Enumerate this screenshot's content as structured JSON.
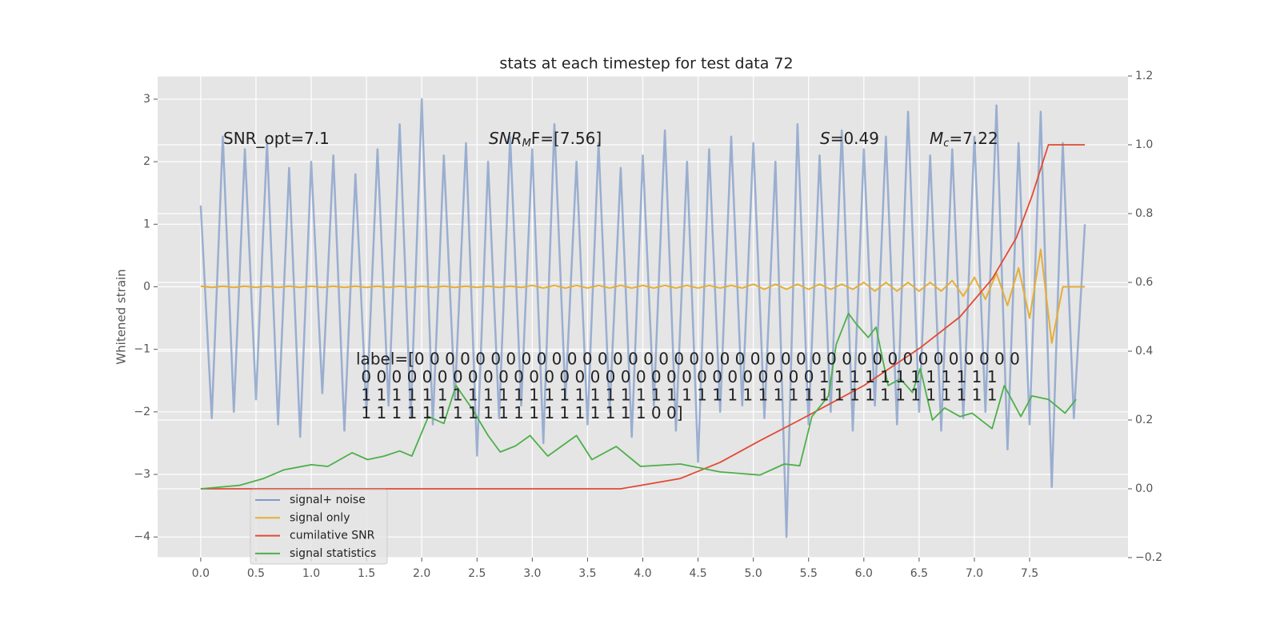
{
  "chart_data": {
    "type": "line",
    "title": "stats at each timestep for test data 72",
    "ylabel": "Whitened strain",
    "xlim": [
      -0.39,
      8.39
    ],
    "ylim": [
      -4.33,
      3.37
    ],
    "y2lim": [
      -0.2,
      1.2
    ],
    "xticks": [
      {
        "value": 0,
        "label": "0.0"
      },
      0.5,
      {
        "value": 1,
        "label": "1.0"
      },
      1.5,
      {
        "value": 2,
        "label": "2.0"
      },
      2.5,
      {
        "value": 3,
        "label": "3.0"
      },
      3.5,
      {
        "value": 4,
        "label": "4.0"
      },
      4.5,
      {
        "value": 5,
        "label": "5.0"
      },
      5.5,
      {
        "value": 6,
        "label": "6.0"
      },
      6.5,
      {
        "value": 7,
        "label": "7.0"
      },
      7.5
    ],
    "yticks": [
      3,
      2,
      1,
      0,
      {
        "value": -1,
        "label": "−1"
      },
      {
        "value": -2,
        "label": "−2"
      },
      {
        "value": -3,
        "label": "−3"
      },
      {
        "value": -4,
        "label": "−4"
      }
    ],
    "y2ticks": [
      1.2,
      {
        "value": 1,
        "label": "1.0"
      },
      0.8,
      0.6,
      0.4,
      0.2,
      {
        "value": 0,
        "label": "0.0"
      },
      {
        "value": -0.2,
        "label": "−0.2"
      }
    ],
    "grid": true,
    "legend": "lower left",
    "x": [
      0,
      0.1,
      0.2,
      0.3,
      0.4,
      0.5,
      0.6,
      0.7,
      0.8,
      0.9,
      1,
      1.1,
      1.2,
      1.3,
      1.4,
      1.5,
      1.6,
      1.7,
      1.8,
      1.9,
      2,
      2.1,
      2.2,
      2.3,
      2.4,
      2.5,
      2.6,
      2.7,
      2.8,
      2.9,
      3,
      3.1,
      3.2,
      3.3,
      3.4,
      3.5,
      3.6,
      3.7,
      3.8,
      3.9,
      4,
      4.1,
      4.2,
      4.3,
      4.4,
      4.5,
      4.6,
      4.7,
      4.8,
      4.9,
      5,
      5.1,
      5.2,
      5.3,
      5.4,
      5.5,
      5.6,
      5.7,
      5.8,
      5.9,
      6,
      6.1,
      6.2,
      6.3,
      6.4,
      6.5,
      6.6,
      6.7,
      6.8,
      6.9,
      7,
      7.1,
      7.2,
      7.3,
      7.4,
      7.5,
      7.6,
      7.7,
      7.8,
      7.9,
      8
    ],
    "series": [
      {
        "name": "signal+ noise",
        "color": "#7f9bc8",
        "values": [
          1.3,
          -2.1,
          2.4,
          -2.0,
          2.2,
          -1.8,
          2.3,
          -2.2,
          1.9,
          -2.4,
          2.0,
          -1.7,
          2.1,
          -2.3,
          1.8,
          -2.0,
          2.2,
          -1.9,
          2.6,
          -2.1,
          3.0,
          -2.2,
          2.1,
          -1.8,
          2.3,
          -2.7,
          2.0,
          -2.1,
          2.4,
          -1.9,
          2.2,
          -2.5,
          2.6,
          -1.8,
          2.0,
          -2.2,
          2.3,
          -2.0,
          1.9,
          -2.4,
          2.1,
          -1.9,
          2.5,
          -2.3,
          2.0,
          -2.8,
          2.2,
          -2.0,
          2.4,
          -1.9,
          2.3,
          -2.1,
          2.0,
          -4.0,
          2.6,
          -2.2,
          2.1,
          -2.0,
          2.5,
          -2.3,
          2.2,
          -1.9,
          2.4,
          -2.2,
          2.8,
          -2.0,
          2.1,
          -2.3,
          2.2,
          -2.1,
          2.4,
          -2.0,
          2.9,
          -2.6,
          2.3,
          -2.2,
          2.8,
          -3.2,
          2.3,
          -2.1,
          1.0
        ]
      },
      {
        "name": "signal only",
        "color": "#e5ae38",
        "values": [
          0.01,
          -0.01,
          0.01,
          -0.01,
          0.01,
          -0.01,
          0.01,
          -0.01,
          0.01,
          -0.01,
          0.01,
          -0.01,
          0.01,
          -0.01,
          0.01,
          -0.01,
          0.01,
          -0.01,
          0.01,
          -0.01,
          0.01,
          -0.01,
          0.01,
          -0.01,
          0.01,
          -0.01,
          0.01,
          -0.01,
          0.01,
          -0.01,
          0.02,
          -0.02,
          0.02,
          -0.02,
          0.02,
          -0.02,
          0.02,
          -0.02,
          0.02,
          -0.02,
          0.02,
          -0.02,
          0.02,
          -0.02,
          0.02,
          -0.02,
          0.02,
          -0.02,
          0.02,
          -0.02,
          0.04,
          -0.04,
          0.04,
          -0.04,
          0.04,
          -0.04,
          0.04,
          -0.04,
          0.04,
          -0.04,
          0.07,
          -0.07,
          0.07,
          -0.07,
          0.07,
          -0.07,
          0.07,
          -0.07,
          0.1,
          -0.15,
          0.15,
          -0.2,
          0.22,
          -0.3,
          0.3,
          -0.5,
          0.6,
          -0.9,
          0,
          0,
          0
        ]
      },
      {
        "name": "cumilative SNR",
        "color": "#e24a33",
        "axis": "y2",
        "x": [
          0,
          3.8,
          3.98,
          4.34,
          4.7,
          5.06,
          5.42,
          6,
          6.51,
          6.87,
          7.16,
          7.38,
          7.52,
          7.67,
          8
        ],
        "values": [
          0,
          0,
          0.01,
          0.03,
          0.077,
          0.14,
          0.2,
          0.3,
          0.41,
          0.5,
          0.61,
          0.73,
          0.85,
          1,
          1
        ]
      },
      {
        "name": "signal statistics",
        "color": "#4daf4a",
        "axis": "y2",
        "x": [
          0,
          0.35,
          0.57,
          0.75,
          1,
          1.15,
          1.37,
          1.51,
          1.66,
          1.8,
          1.91,
          2.06,
          2.2,
          2.31,
          2.45,
          2.6,
          2.71,
          2.85,
          2.98,
          3.14,
          3.4,
          3.54,
          3.76,
          3.98,
          4.34,
          4.7,
          5.06,
          5.28,
          5.42,
          5.53,
          5.68,
          5.75,
          5.86,
          5.93,
          6.04,
          6.11,
          6.22,
          6.33,
          6.44,
          6.51,
          6.62,
          6.73,
          6.87,
          6.98,
          7.16,
          7.27,
          7.42,
          7.52,
          7.67,
          7.82,
          7.92
        ],
        "values": [
          0,
          0.01,
          0.03,
          0.055,
          0.07,
          0.065,
          0.105,
          0.085,
          0.095,
          0.11,
          0.095,
          0.21,
          0.19,
          0.3,
          0.235,
          0.155,
          0.107,
          0.125,
          0.155,
          0.095,
          0.155,
          0.085,
          0.123,
          0.065,
          0.072,
          0.049,
          0.04,
          0.072,
          0.067,
          0.21,
          0.27,
          0.42,
          0.51,
          0.48,
          0.44,
          0.47,
          0.3,
          0.32,
          0.28,
          0.35,
          0.2,
          0.235,
          0.21,
          0.22,
          0.175,
          0.3,
          0.21,
          0.27,
          0.26,
          0.22,
          0.26
        ]
      }
    ],
    "annotations": [
      {
        "base": "SNR_opt=7.1"
      },
      {
        "base": "SNR",
        "sub": "M",
        "rest": "F=[7.56]"
      },
      {
        "base": "S",
        "rest": "=0.49"
      },
      {
        "base": "M",
        "sub": "c",
        "rest": "=7.22"
      }
    ],
    "label_text": [
      "label=[0 0 0 0 0 0 0 0 0 0 0 0 0 0 0 0 0 0 0 0 0 0 0 0 0 0 0 0 0 0 0 0 0 0 0 0 0 0 0 0",
      " 0 0 0 0 0 0 0 0 0 0 0 0 0 0 0 0 0 0 0 0 0 0 0 0 0 0 0 0 0 0 1 1 1 1 1 1 1 1 1 1 1 1",
      " 1 1 1 1 1 1 1 1 1 1 1 1 1 1 1 1 1 1 1 1 1 1 1 1 1 1 1 1 1 1 1 1 1 1 1 1 1 1 1 1 1 1",
      " 1 1 1 1 1 1 1 1 1 1 1 1 1 1 1 1 1 1 1 0 0]"
    ]
  }
}
